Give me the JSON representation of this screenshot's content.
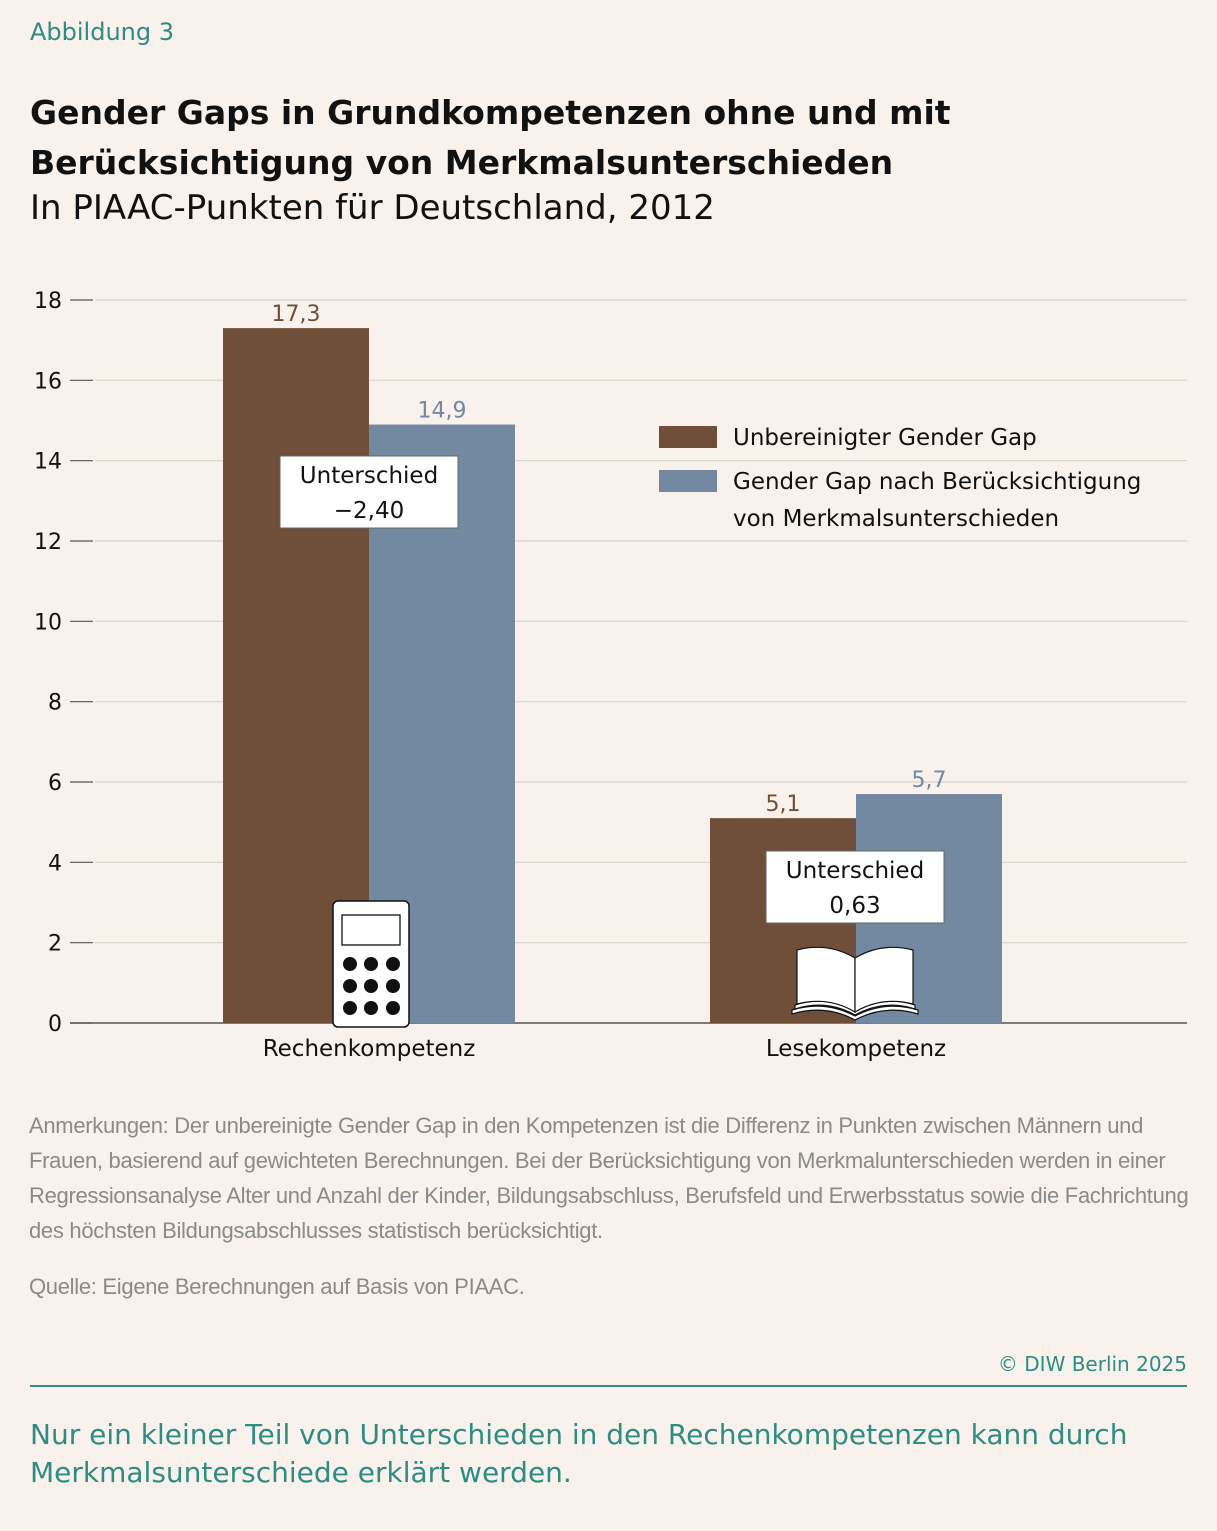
{
  "header": {
    "kicker": "Abbildung 3",
    "title": "Gender Gaps in Grundkompetenzen ohne und mit Berücksichtigung von Merkmalsunterschieden",
    "subtitle": "In PIAAC-Punkten für Deutschland, 2012"
  },
  "colors": {
    "brown": "#6f4f3a",
    "blue": "#7289a1",
    "teal": "#2e8c82",
    "grid": "#d9d3cc"
  },
  "chart_data": {
    "type": "bar",
    "categories": [
      "Rechenkompetenz",
      "Lesekompetenz"
    ],
    "series": [
      {
        "name": "Unbereinigter Gender Gap",
        "values": [
          17.3,
          5.1
        ],
        "labels": [
          "17,3",
          "5,1"
        ]
      },
      {
        "name": "Gender Gap nach Berücksichtigung von Merkmalsunterschieden",
        "values": [
          14.9,
          5.7
        ],
        "labels": [
          "14,9",
          "5,7"
        ]
      }
    ],
    "ylim": [
      0,
      18
    ],
    "yticks": [
      0,
      2,
      4,
      6,
      8,
      10,
      12,
      14,
      16,
      18
    ],
    "grid": true,
    "legend_position": "top-right",
    "legend_lines": [
      [
        "Unbereinigter Gender Gap"
      ],
      [
        "Gender Gap nach Berücksichtigung",
        "von Merkmalsunterschieden"
      ]
    ],
    "annotations": [
      {
        "category": "Rechenkompetenz",
        "lines": [
          "Unterschied",
          "−2,40"
        ],
        "icon": "calculator-icon"
      },
      {
        "category": "Lesekompetenz",
        "lines": [
          "Unterschied",
          "0,63"
        ],
        "icon": "book-icon"
      }
    ]
  },
  "notes": "Anmerkungen: Der unbereinigte Gender Gap in den Kompetenzen ist die Differenz in Punkten zwischen Männern und Frauen, basierend auf gewichteten Berechnungen. Bei der Berücksichtigung von Merkmalunterschieden werden in einer Regressionsanalyse Alter und Anzahl der Kinder, Bildungsabschluss, Berufsfeld und Erwerbsstatus sowie die Fachrichtung des höchsten Bildungsabschlusses statistisch berücksichtigt.",
  "source": "Quelle: Eigene Berechnungen auf Basis von PIAAC.",
  "copyright": "© DIW Berlin 2025",
  "takeaway": "Nur ein kleiner Teil von Unterschieden in den Rechenkompetenzen kann durch Merkmalsunterschiede erklärt werden."
}
